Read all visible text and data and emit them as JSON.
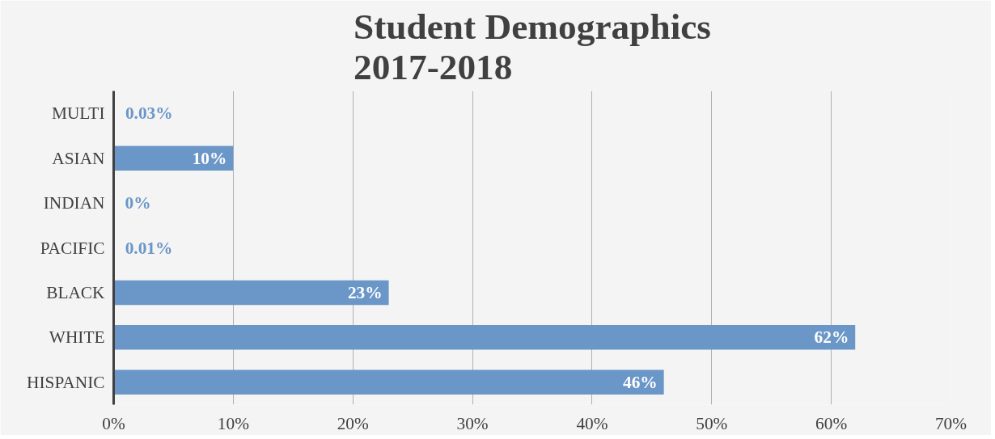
{
  "chart_data": {
    "type": "bar",
    "orientation": "horizontal",
    "title": "Student Demographics\n2017-2018",
    "categories": [
      "MULTI",
      "ASIAN",
      "INDIAN",
      "PACIFIC",
      "BLACK",
      "WHITE",
      "HISPANIC"
    ],
    "values": [
      0.03,
      10,
      0,
      0.01,
      23,
      62,
      46
    ],
    "value_labels": [
      "0.03%",
      "10%",
      "0%",
      "0.01%",
      "23%",
      "62%",
      "46%"
    ],
    "color": "#6a96c8",
    "xlim": [
      0,
      70
    ],
    "xticks": [
      {
        "value": 0,
        "label": "0%"
      },
      {
        "value": 10,
        "label": "10%"
      },
      {
        "value": 20,
        "label": "20%"
      },
      {
        "value": 30,
        "label": "30%"
      },
      {
        "value": 40,
        "label": "40%"
      },
      {
        "value": 50,
        "label": "50%"
      },
      {
        "value": 60,
        "label": "60%"
      },
      {
        "value": 70,
        "label": "70%"
      }
    ],
    "grid": "x"
  }
}
